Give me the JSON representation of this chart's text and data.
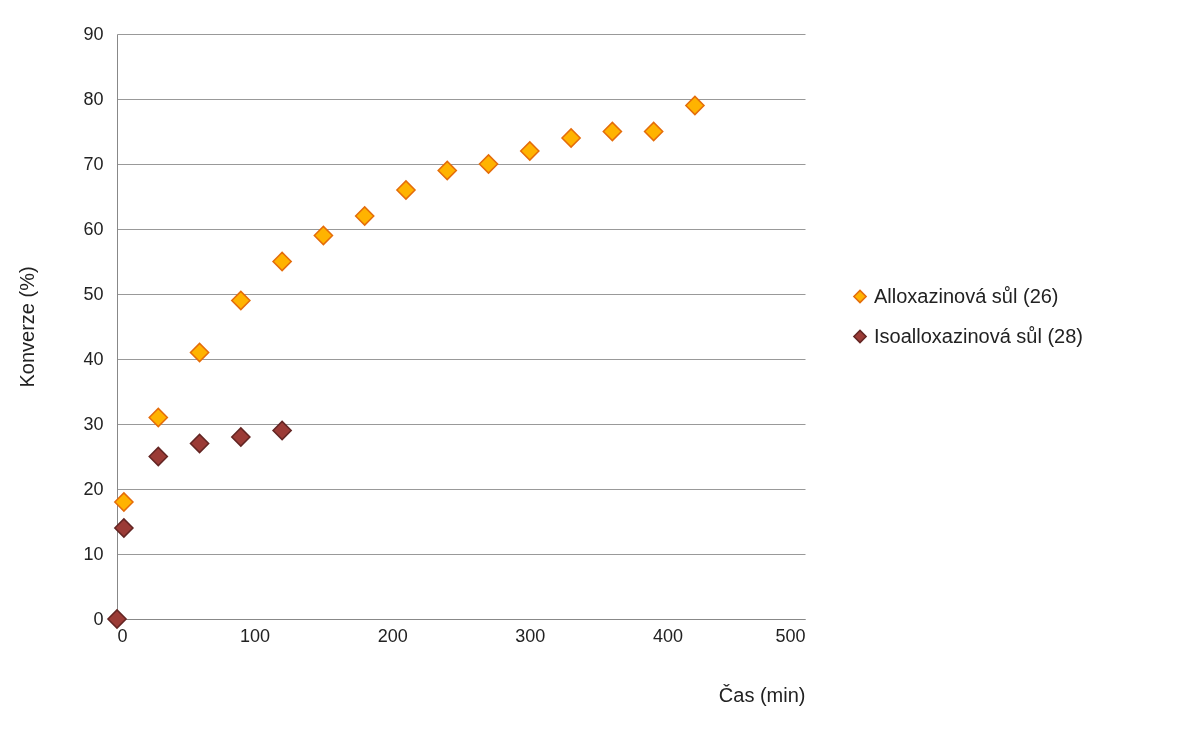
{
  "chart_data": {
    "type": "scatter",
    "xlabel": "Čas (min)",
    "ylabel": "Konverze (%)",
    "xlim": [
      0,
      500
    ],
    "ylim": [
      0,
      90
    ],
    "xticks": [
      0,
      100,
      200,
      300,
      400,
      500
    ],
    "yticks": [
      0,
      10,
      20,
      30,
      40,
      50,
      60,
      70,
      80,
      90
    ],
    "grid": "y",
    "legend": "right",
    "marker": "diamond",
    "series": [
      {
        "name": "Alloxazinová sůl (26)",
        "color": "#ffb300",
        "x": [
          5,
          30,
          60,
          90,
          120,
          150,
          180,
          210,
          240,
          270,
          300,
          330,
          360,
          390,
          420
        ],
        "values": [
          18,
          31,
          41,
          49,
          55,
          59,
          62,
          66,
          69,
          70,
          72,
          74,
          75,
          75,
          79
        ]
      },
      {
        "name": "Isoalloxazinová sůl (28)",
        "color": "#9b3b36",
        "x": [
          0,
          5,
          30,
          60,
          90,
          120
        ],
        "values": [
          0,
          14,
          25,
          27,
          28,
          29
        ]
      }
    ]
  }
}
